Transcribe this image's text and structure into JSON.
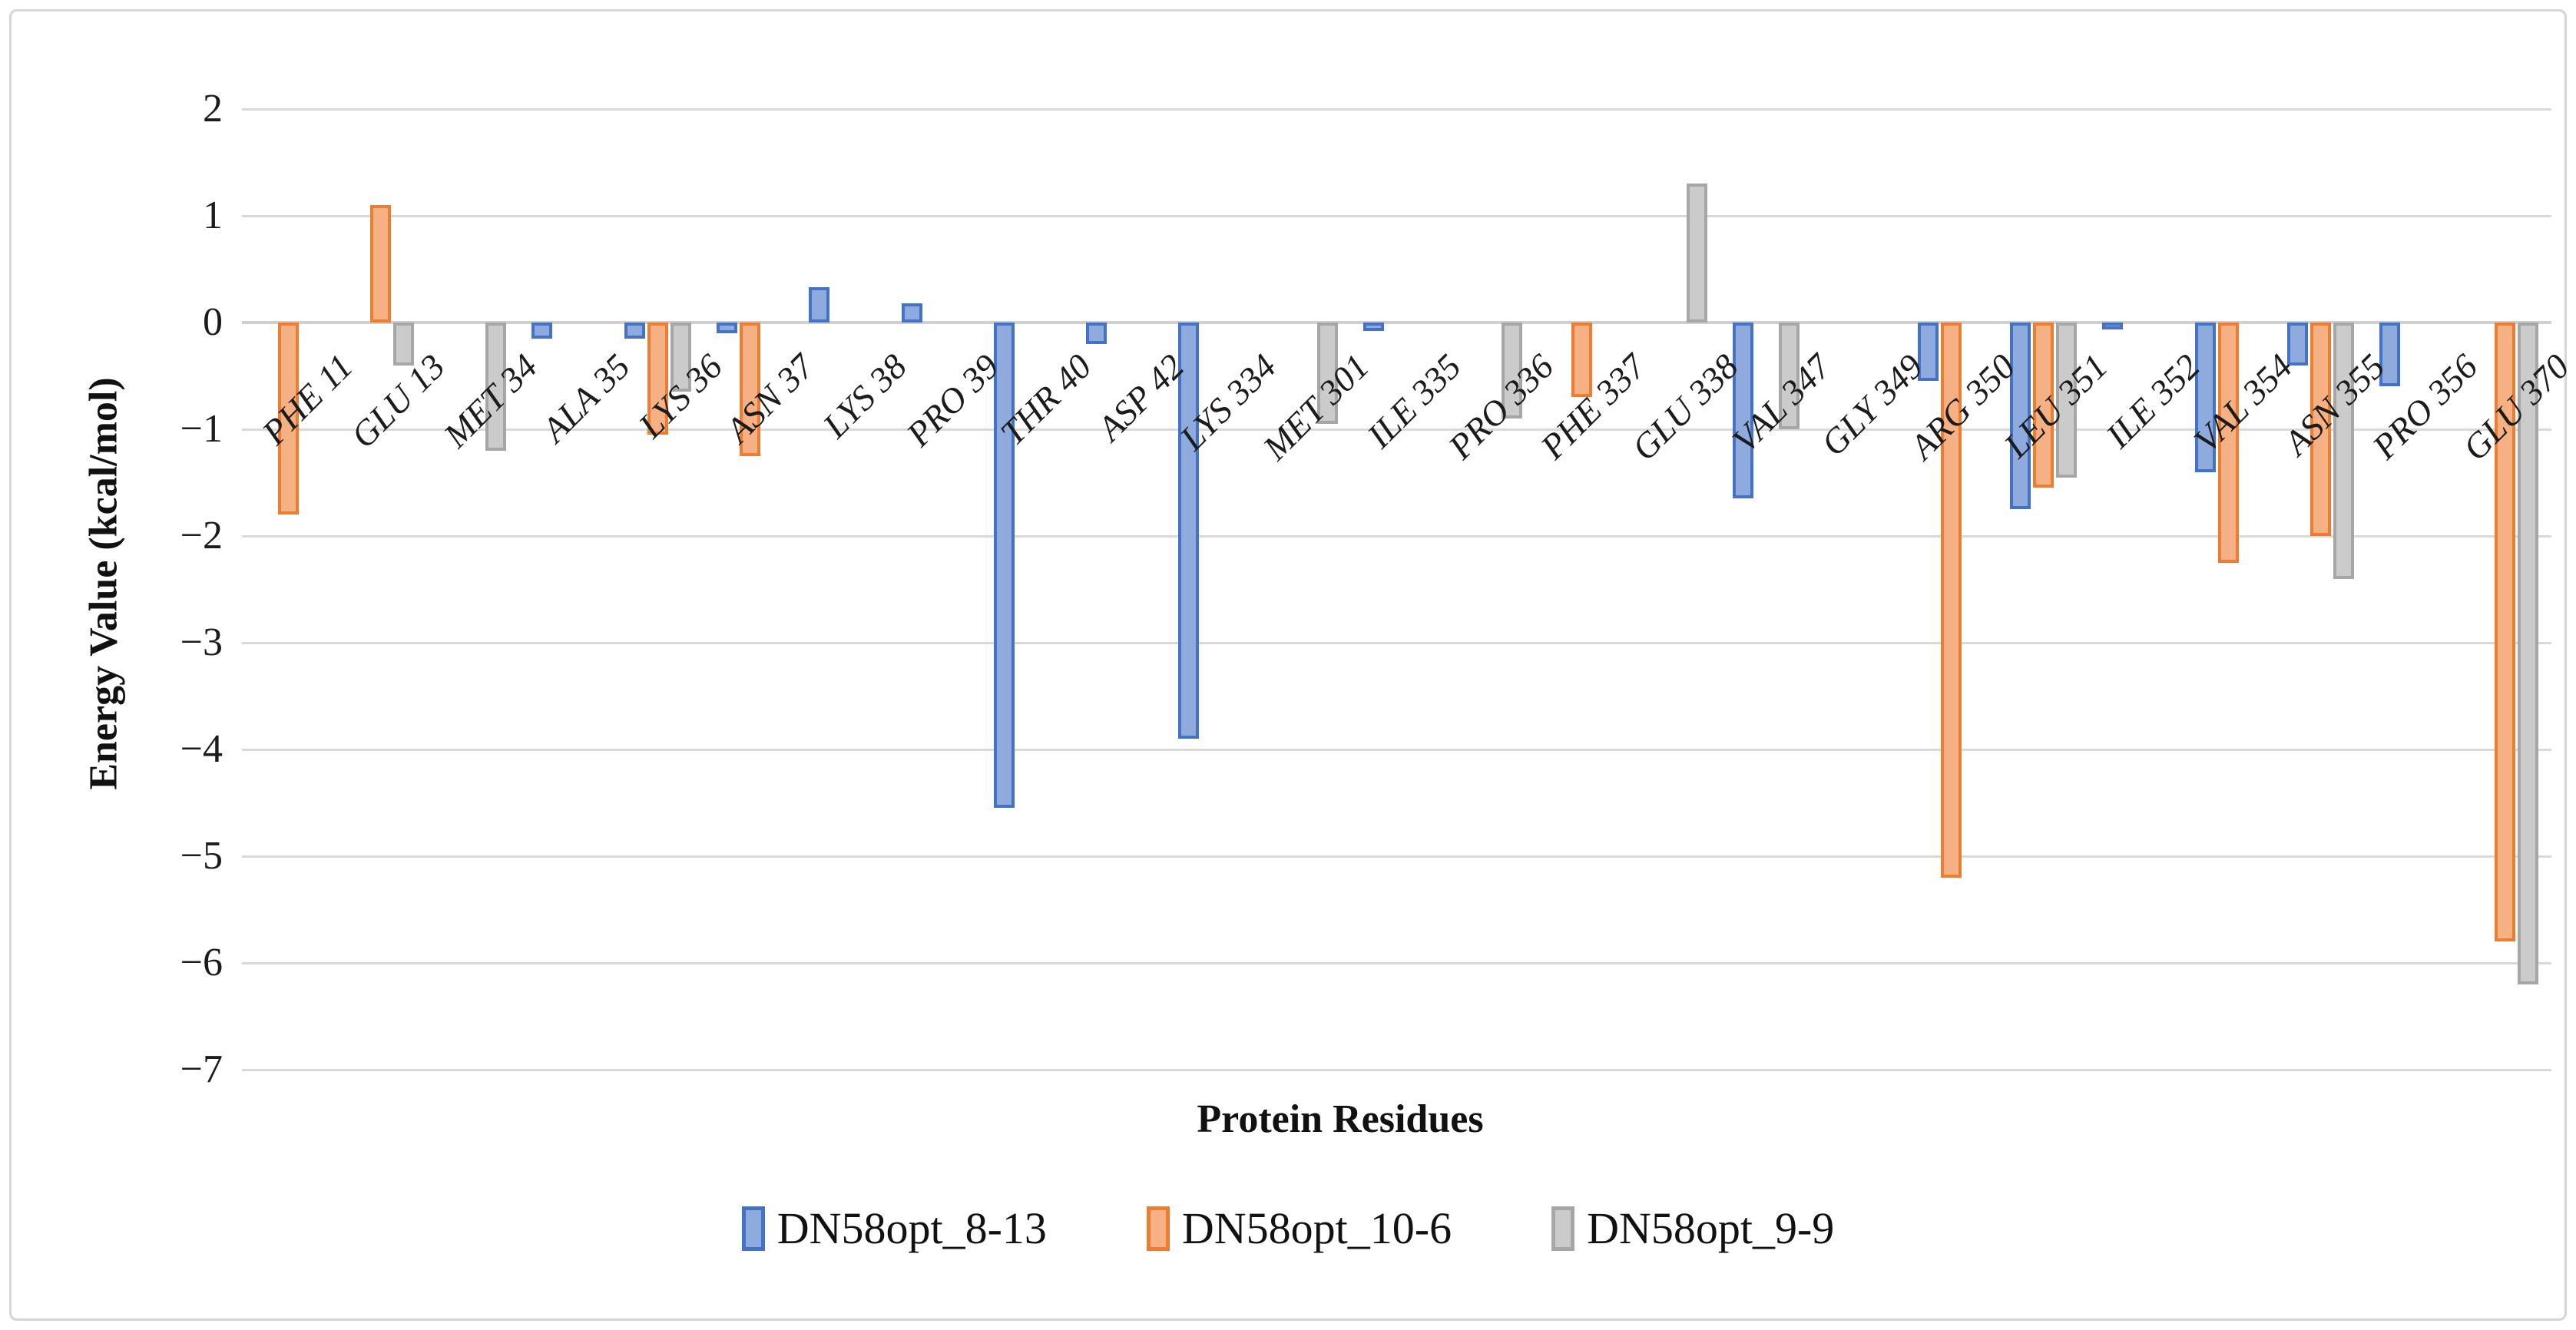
{
  "chart_data": {
    "type": "bar",
    "title": "",
    "xlabel": "Protein Residues",
    "ylabel": "Energy Value (kcal/mol)",
    "ylim": [
      -7,
      2
    ],
    "yticks": [
      2,
      1,
      0,
      -1,
      -2,
      -3,
      -4,
      -5,
      -6,
      -7
    ],
    "grid": true,
    "legend_position": "bottom",
    "gridline_color": "#D9D9D9",
    "frame_border_color": "#D6D6D6",
    "categories": [
      "PHE 11",
      "GLU 13",
      "MET 34",
      "ALA 35",
      "LYS 36",
      "ASN 37",
      "LYS 38",
      "PRO 39",
      "THR 40",
      "ASP 42",
      "LYS 334",
      "MET 301",
      "ILE 335",
      "PRO 336",
      "PHE 337",
      "GLU 338",
      "VAL 347",
      "GLY 349",
      "ARG 350",
      "LEU 351",
      "ILE 352",
      "VAL 354",
      "ASN 355",
      "PRO 356",
      "GLU 370"
    ],
    "series": [
      {
        "name": "DN58opt_8-13",
        "fill": "#8FAADC",
        "border": "#4472C4",
        "values": [
          null,
          null,
          null,
          -0.15,
          -0.15,
          -0.1,
          0.33,
          0.18,
          -4.55,
          -0.2,
          -3.9,
          null,
          -0.08,
          null,
          null,
          null,
          -1.65,
          null,
          -0.55,
          -1.75,
          -0.05,
          -1.4,
          -0.4,
          -0.6,
          null
        ]
      },
      {
        "name": "DN58opt_10-6",
        "fill": "#F5B183",
        "border": "#ED7D31",
        "values": [
          -1.8,
          1.1,
          null,
          null,
          -1.05,
          -1.25,
          null,
          null,
          null,
          null,
          null,
          null,
          null,
          null,
          -0.7,
          null,
          null,
          null,
          -5.2,
          -1.55,
          null,
          -2.25,
          -2.0,
          null,
          -5.8
        ]
      },
      {
        "name": "DN58opt_9-9",
        "fill": "#CBCBCB",
        "border": "#A6A6A6",
        "values": [
          null,
          -0.4,
          -1.2,
          null,
          -0.65,
          null,
          null,
          null,
          null,
          null,
          null,
          -0.95,
          null,
          -0.9,
          null,
          1.3,
          -1.0,
          null,
          null,
          -1.45,
          null,
          null,
          -2.4,
          null,
          -6.2
        ]
      }
    ]
  }
}
